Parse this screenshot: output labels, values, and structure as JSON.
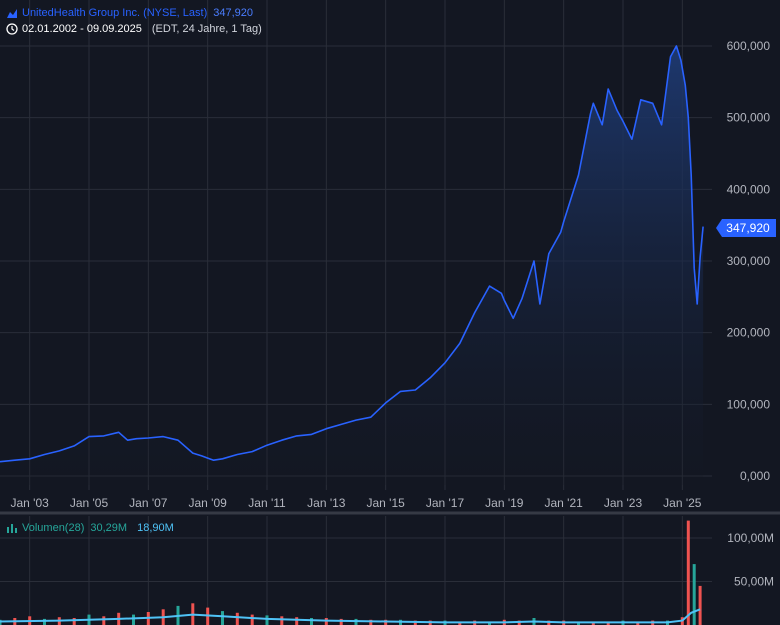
{
  "header": {
    "instrument": "UnitedHealth Group Inc. (NYSE, Last)",
    "last_price": "347,920",
    "date_range": "02.01.2002 - 09.09.2025",
    "range_info": "(EDT, 24 Jahre, 1 Tag)"
  },
  "price_badge": "347,920",
  "volume_legend": {
    "label": "Volumen(28)",
    "value_1": "30,29M",
    "value_2": "18,90M"
  },
  "colors": {
    "background": "#131722",
    "line": "#2962ff",
    "area_top": "#1e3a73",
    "grid": "#2a2e39",
    "text": "#b2b5be",
    "volume_up": "#26a69a",
    "volume_down": "#ef5350",
    "volume_ma": "#4fc3f7"
  },
  "chart_data": [
    {
      "type": "area",
      "title": "",
      "xlabel": "",
      "ylabel": "",
      "x_ticks": [
        "Jan '03",
        "Jan '05",
        "Jan '07",
        "Jan '09",
        "Jan '11",
        "Jan '13",
        "Jan '15",
        "Jan '17",
        "Jan '19",
        "Jan '21",
        "Jan '23",
        "Jan '25"
      ],
      "y_ticks": [
        "0,000",
        "100,000",
        "200,000",
        "300,000",
        "400,000",
        "500,000",
        "600,000"
      ],
      "ylim": [
        -20,
        650
      ],
      "xlim": [
        2002.0,
        2026.0
      ],
      "grid": true,
      "series": [
        {
          "name": "",
          "x": [
            2002.0,
            2002.5,
            2003.0,
            2003.5,
            2004.0,
            2004.5,
            2005.0,
            2005.5,
            2006.0,
            2006.3,
            2006.6,
            2007.0,
            2007.5,
            2008.0,
            2008.5,
            2008.8,
            2009.0,
            2009.2,
            2009.5,
            2010.0,
            2010.5,
            2011.0,
            2011.5,
            2012.0,
            2012.5,
            2013.0,
            2013.5,
            2014.0,
            2014.5,
            2015.0,
            2015.5,
            2016.0,
            2016.5,
            2017.0,
            2017.5,
            2018.0,
            2018.5,
            2018.9,
            2019.0,
            2019.3,
            2019.6,
            2020.0,
            2020.2,
            2020.5,
            2020.9,
            2021.0,
            2021.5,
            2021.9,
            2022.0,
            2022.3,
            2022.5,
            2022.8,
            2023.0,
            2023.3,
            2023.6,
            2024.0,
            2024.3,
            2024.6,
            2024.8,
            2024.95,
            2025.1,
            2025.2,
            2025.3,
            2025.4,
            2025.5,
            2025.6,
            2025.7
          ],
          "values": [
            20,
            22,
            24,
            30,
            35,
            42,
            55,
            56,
            61,
            50,
            52,
            53,
            55,
            50,
            32,
            28,
            25,
            22,
            24,
            30,
            34,
            43,
            50,
            56,
            58,
            66,
            72,
            78,
            82,
            102,
            118,
            120,
            137,
            158,
            185,
            228,
            265,
            255,
            245,
            220,
            248,
            300,
            240,
            310,
            340,
            355,
            420,
            505,
            520,
            490,
            540,
            510,
            495,
            470,
            525,
            520,
            490,
            585,
            600,
            580,
            545,
            500,
            420,
            290,
            240,
            305,
            348
          ]
        }
      ]
    },
    {
      "type": "bar",
      "title": "",
      "y_ticks": [
        "50,00M",
        "100,00M"
      ],
      "ylim": [
        0,
        125
      ],
      "xlim": [
        2002.0,
        2026.0
      ],
      "series": [
        {
          "name": "Volumen(28)",
          "x": [
            2002.0,
            2002.5,
            2003.0,
            2003.5,
            2004.0,
            2004.5,
            2005.0,
            2005.5,
            2006.0,
            2006.5,
            2007.0,
            2007.5,
            2008.0,
            2008.5,
            2009.0,
            2009.5,
            2010.0,
            2010.5,
            2011.0,
            2011.5,
            2012.0,
            2012.5,
            2013.0,
            2013.5,
            2014.0,
            2014.5,
            2015.0,
            2015.5,
            2016.0,
            2016.5,
            2017.0,
            2017.5,
            2018.0,
            2018.5,
            2019.0,
            2019.5,
            2020.0,
            2020.5,
            2021.0,
            2021.5,
            2022.0,
            2022.5,
            2023.0,
            2023.5,
            2024.0,
            2024.5,
            2025.0,
            2025.2,
            2025.4,
            2025.6
          ],
          "values": [
            6,
            8,
            10,
            7,
            9,
            8,
            12,
            10,
            14,
            12,
            15,
            18,
            22,
            25,
            20,
            16,
            14,
            12,
            11,
            10,
            9,
            8,
            8,
            7,
            7,
            6,
            6,
            6,
            5,
            5,
            5,
            4,
            5,
            4,
            6,
            5,
            8,
            5,
            5,
            4,
            4,
            4,
            5,
            4,
            5,
            5,
            9,
            120,
            70,
            45
          ]
        },
        {
          "name": "",
          "x": [
            2002.0,
            2004.0,
            2006.0,
            2007.5,
            2008.5,
            2009.5,
            2011.0,
            2013.0,
            2015.0,
            2017.0,
            2019.0,
            2020.0,
            2021.0,
            2023.0,
            2024.5,
            2025.0,
            2025.3,
            2025.6
          ],
          "values": [
            4,
            5,
            7,
            9,
            12,
            10,
            7,
            5,
            4,
            3,
            3,
            4,
            3,
            3,
            3,
            5,
            14,
            18
          ]
        }
      ]
    }
  ]
}
